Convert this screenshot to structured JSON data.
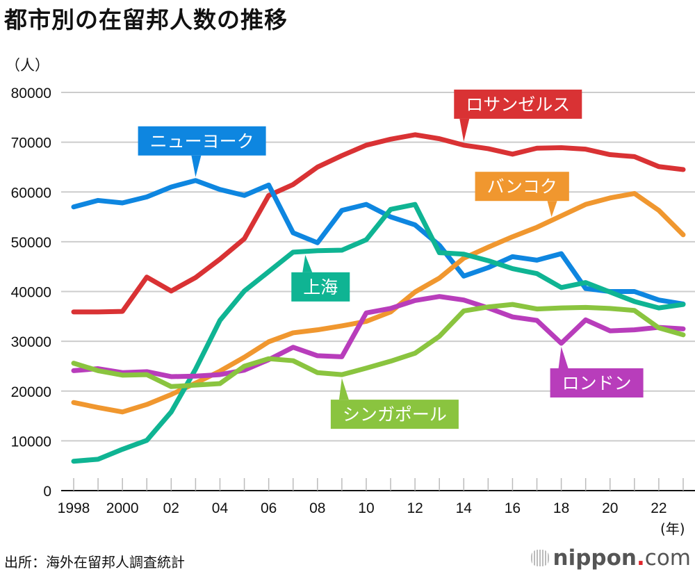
{
  "header": {
    "title": "都市別の在留邦人数の推移",
    "y_unit": "（人）",
    "x_unit": "(年)"
  },
  "footer": {
    "source": "出所：海外在留邦人調査統計",
    "logo_brand": "nippon",
    "logo_dot": ".",
    "logo_suffix": "com"
  },
  "chart_data": {
    "type": "line",
    "title": "都市別の在留邦人数の推移",
    "xlabel": "(年)",
    "ylabel": "（人）",
    "x": [
      1998,
      1999,
      2000,
      2001,
      2002,
      2003,
      2004,
      2005,
      2006,
      2007,
      2008,
      2009,
      2010,
      2011,
      2012,
      2013,
      2014,
      2015,
      2016,
      2017,
      2018,
      2019,
      2020,
      2021,
      2022,
      2023
    ],
    "x_tick_labels": [
      {
        "year": 1998,
        "label": "1998"
      },
      {
        "year": 2000,
        "label": "2000"
      },
      {
        "year": 2002,
        "label": "02"
      },
      {
        "year": 2004,
        "label": "04"
      },
      {
        "year": 2006,
        "label": "06"
      },
      {
        "year": 2008,
        "label": "08"
      },
      {
        "year": 2010,
        "label": "10"
      },
      {
        "year": 2012,
        "label": "12"
      },
      {
        "year": 2014,
        "label": "14"
      },
      {
        "year": 2016,
        "label": "16"
      },
      {
        "year": 2018,
        "label": "18"
      },
      {
        "year": 2020,
        "label": "20"
      },
      {
        "year": 2022,
        "label": "22"
      }
    ],
    "y_ticks": [
      0,
      10000,
      20000,
      30000,
      40000,
      50000,
      60000,
      70000,
      80000
    ],
    "ylim": [
      0,
      80000
    ],
    "xlim": [
      1998,
      2023
    ],
    "grid": true,
    "legend": "inline-callouts",
    "series": [
      {
        "name": "ロサンゼルス",
        "key": "los-angeles",
        "color": "#d93234",
        "label_year": 2014,
        "label_placement": "above",
        "values": [
          35900,
          35900,
          36000,
          42900,
          40100,
          42800,
          46500,
          50600,
          59300,
          61500,
          65000,
          67300,
          69400,
          70600,
          71500,
          70700,
          69400,
          68700,
          67600,
          68800,
          68900,
          68600,
          67500,
          67100,
          65100,
          64500
        ]
      },
      {
        "name": "ニューヨーク",
        "key": "new-york",
        "color": "#0e86e0",
        "label_year": 2003,
        "label_placement": "above",
        "values": [
          57000,
          58300,
          57800,
          59000,
          61000,
          62300,
          60500,
          59300,
          61400,
          51800,
          49800,
          56300,
          57500,
          55000,
          53400,
          49300,
          43100,
          44800,
          47000,
          46300,
          47600,
          40600,
          40000,
          40000,
          38300,
          37500
        ]
      },
      {
        "name": "バンコク",
        "key": "bangkok",
        "color": "#f0972f",
        "label_year": 2017.6,
        "label_placement": "above",
        "values": [
          17700,
          16700,
          15800,
          17300,
          19300,
          21600,
          24000,
          26800,
          29900,
          31700,
          32300,
          33100,
          34000,
          35900,
          39900,
          42700,
          46700,
          48900,
          51000,
          52900,
          55200,
          57500,
          58800,
          59700,
          56300,
          51400
        ]
      },
      {
        "name": "上海",
        "key": "shanghai",
        "color": "#0fb493",
        "label_year": 2007.5,
        "label_placement": "below",
        "values": [
          5900,
          6300,
          8300,
          10100,
          15800,
          24400,
          34200,
          40100,
          44000,
          47900,
          48200,
          48300,
          50400,
          56500,
          57500,
          47800,
          47500,
          46200,
          44600,
          43600,
          40800,
          41800,
          39900,
          38000,
          36700,
          37400
        ]
      },
      {
        "name": "ロンドン",
        "key": "london",
        "color": "#b83dbb",
        "label_year": 2018,
        "label_placement": "below",
        "values": [
          24100,
          24500,
          23700,
          23900,
          22900,
          23000,
          23300,
          24200,
          26300,
          28800,
          27100,
          26900,
          35700,
          36600,
          38200,
          39000,
          38300,
          36700,
          34900,
          34200,
          29600,
          34300,
          32100,
          32300,
          32800,
          32500
        ]
      },
      {
        "name": "シンガポール",
        "key": "singapore",
        "color": "#8ac43f",
        "label_year": 2009,
        "label_placement": "below",
        "values": [
          25600,
          24100,
          23200,
          23300,
          20900,
          21200,
          21500,
          25000,
          26500,
          26100,
          23700,
          23300,
          24600,
          26000,
          27600,
          31000,
          36100,
          36900,
          37400,
          36500,
          36700,
          36800,
          36600,
          36200,
          32700,
          31300
        ]
      }
    ]
  }
}
